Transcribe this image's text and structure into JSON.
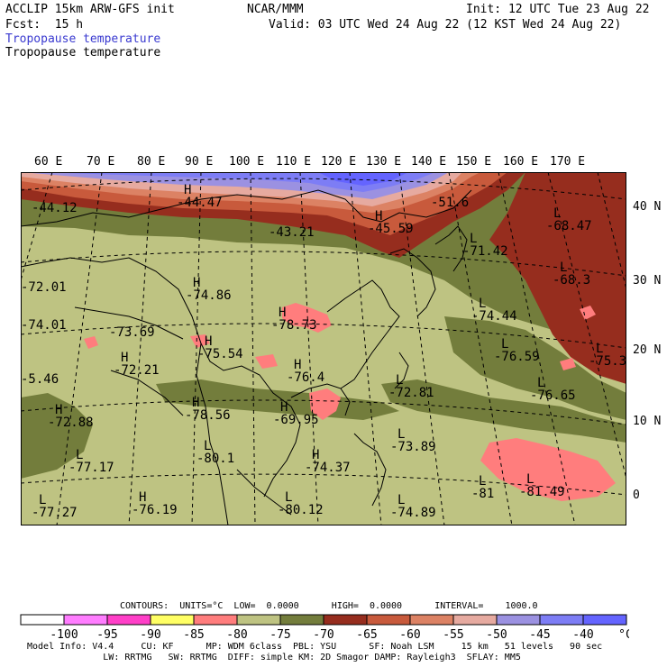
{
  "header": {
    "model": "ACCLIP 15km ARW-GFS init",
    "center": "NCAR/MMM",
    "init": "Init: 12 UTC Tue 23 Aug 22",
    "fcst": "Fcst:  15 h",
    "valid": "Valid: 03 UTC Wed 24 Aug 22 (12 KST Wed 24 Aug 22)",
    "field_title_1": "Tropopause temperature",
    "field_title_2": "Tropopause temperature"
  },
  "map": {
    "lon_labels": [
      "60 E",
      "70 E",
      "80 E",
      "90 E",
      "100 E",
      "110 E",
      "120 E",
      "130 E",
      "140 E",
      "150 E",
      "160 E",
      "170 E"
    ],
    "lat_labels": [
      "40 N",
      "30 N",
      "20 N",
      "10 N",
      "0"
    ],
    "centers": [
      {
        "type": "",
        "value": "-44.12"
      },
      {
        "type": "H",
        "value": "-44.47"
      },
      {
        "type": "",
        "value": "-43.21"
      },
      {
        "type": "H",
        "value": "-45.59"
      },
      {
        "type": "",
        "value": "-51.6"
      },
      {
        "type": "L",
        "value": "-68.47"
      },
      {
        "type": "L",
        "value": "-71.42"
      },
      {
        "type": "L",
        "value": "-68.3"
      },
      {
        "type": "",
        "value": "-72.01"
      },
      {
        "type": "H",
        "value": "-74.86"
      },
      {
        "type": "",
        "value": "-74.01"
      },
      {
        "type": "",
        "value": "-73.69"
      },
      {
        "type": "H",
        "value": "-78.73"
      },
      {
        "type": "L",
        "value": "-74.44"
      },
      {
        "type": "L",
        "value": "-76.59"
      },
      {
        "type": "L",
        "value": "-75.3"
      },
      {
        "type": "H",
        "value": "-75.54"
      },
      {
        "type": "H",
        "value": "-72.21"
      },
      {
        "type": "",
        "value": "-5.46"
      },
      {
        "type": "H",
        "value": "-76.4"
      },
      {
        "type": "L",
        "value": "-72.81"
      },
      {
        "type": "L",
        "value": "-76.65"
      },
      {
        "type": "H",
        "value": "-78.56"
      },
      {
        "type": "H",
        "value": "-69.95"
      },
      {
        "type": "H",
        "value": "-72.88"
      },
      {
        "type": "L",
        "value": "-73.89"
      },
      {
        "type": "L",
        "value": "-77.17"
      },
      {
        "type": "L",
        "value": "-80.1"
      },
      {
        "type": "H",
        "value": "-74.37"
      },
      {
        "type": "L",
        "value": "-81"
      },
      {
        "type": "L",
        "value": "-81.49"
      },
      {
        "type": "H",
        "value": "-76.19"
      },
      {
        "type": "L",
        "value": "-77.27"
      },
      {
        "type": "L",
        "value": "-80.12"
      },
      {
        "type": "L",
        "value": "-74.89"
      }
    ]
  },
  "contours_line": "CONTOURS:  UNITS=°C  LOW=  0.0000      HIGH=  0.0000      INTERVAL=    1000.0",
  "legend": {
    "ticks": [
      "-100",
      "-95",
      "-90",
      "-85",
      "-80",
      "-75",
      "-70",
      "-65",
      "-60",
      "-55",
      "-50",
      "-45",
      "-40"
    ],
    "unit": "°C",
    "colors": [
      "#ffffff",
      "#ff7dff",
      "#ff3fc8",
      "#ffff64",
      "#ff7d7d",
      "#bec382",
      "#737d3c",
      "#962d1e",
      "#c85a3c",
      "#dc8264",
      "#e6aaa0",
      "#9b91e1",
      "#7d7df5",
      "#6464ff"
    ]
  },
  "footer": {
    "line1": "Model Info: V4.4     CU: KF      MP: WDM 6class  PBL: YSU      SF: Noah LSM     15 km   51 levels   90 sec",
    "line2": "              LW: RRTMG   SW: RRTMG  DIFF: simple KM: 2D Smagor DAMP: Rayleigh3  SFLAY: MM5"
  }
}
